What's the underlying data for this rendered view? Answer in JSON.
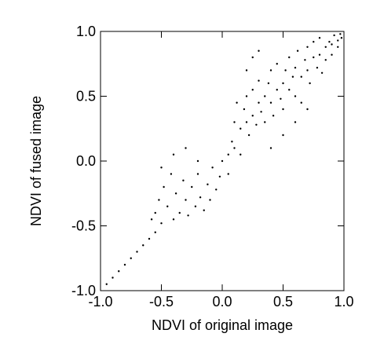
{
  "chart_data": {
    "type": "scatter",
    "xlabel": "NDVI of original image",
    "ylabel": "NDVI of fused image",
    "xlim": [
      -1,
      1
    ],
    "ylim": [
      -1,
      1
    ],
    "xticks": [
      {
        "value": -1,
        "label": "-1.0"
      },
      -0.5,
      {
        "value": 0,
        "label": "0.0"
      },
      0.5,
      {
        "value": 1,
        "label": "1.0"
      }
    ],
    "yticks": [
      {
        "value": -1,
        "label": "-1.0"
      },
      -0.5,
      {
        "value": 0,
        "label": "0.0"
      },
      0.5,
      {
        "value": 1,
        "label": "1.0"
      }
    ],
    "series": [
      {
        "color": "#000000",
        "x": [
          -0.95,
          -0.9,
          -0.85,
          -0.8,
          -0.75,
          -0.7,
          -0.65,
          -0.6,
          -0.55,
          -0.58,
          -0.55,
          -0.52,
          -0.5,
          -0.48,
          -0.45,
          -0.42,
          -0.4,
          -0.38,
          -0.35,
          -0.32,
          -0.3,
          -0.28,
          -0.25,
          -0.22,
          -0.2,
          -0.18,
          -0.15,
          -0.12,
          -0.1,
          -0.08,
          -0.05,
          -0.02,
          -0.5,
          -0.4,
          -0.3,
          -0.2,
          0.0,
          0.05,
          0.05,
          0.08,
          0.1,
          0.1,
          0.12,
          0.15,
          0.15,
          0.18,
          0.2,
          0.2,
          0.22,
          0.25,
          0.25,
          0.28,
          0.3,
          0.3,
          0.32,
          0.35,
          0.35,
          0.38,
          0.4,
          0.4,
          0.42,
          0.45,
          0.45,
          0.48,
          0.5,
          0.5,
          0.52,
          0.55,
          0.55,
          0.58,
          0.6,
          0.6,
          0.62,
          0.65,
          0.65,
          0.68,
          0.7,
          0.7,
          0.72,
          0.75,
          0.75,
          0.78,
          0.8,
          0.8,
          0.82,
          0.85,
          0.85,
          0.88,
          0.9,
          0.9,
          0.92,
          0.95,
          0.95,
          0.97,
          0.98,
          0.3,
          0.2,
          0.6,
          0.7,
          0.5,
          0.4,
          0.25
        ],
        "y": [
          -0.95,
          -0.9,
          -0.85,
          -0.8,
          -0.75,
          -0.7,
          -0.65,
          -0.6,
          -0.55,
          -0.45,
          -0.4,
          -0.3,
          -0.48,
          -0.2,
          -0.35,
          -0.1,
          -0.45,
          -0.25,
          -0.4,
          -0.15,
          -0.3,
          -0.42,
          -0.2,
          -0.35,
          -0.1,
          -0.28,
          -0.38,
          -0.18,
          -0.3,
          -0.05,
          -0.22,
          -0.12,
          -0.05,
          0.05,
          0.1,
          0.0,
          0.0,
          0.05,
          -0.1,
          0.15,
          0.3,
          0.1,
          0.45,
          0.25,
          0.05,
          0.4,
          0.3,
          0.5,
          0.2,
          0.35,
          0.55,
          0.28,
          0.45,
          0.62,
          0.38,
          0.5,
          0.3,
          0.6,
          0.45,
          0.7,
          0.35,
          0.55,
          0.75,
          0.48,
          0.6,
          0.4,
          0.7,
          0.55,
          0.8,
          0.65,
          0.5,
          0.72,
          0.85,
          0.65,
          0.45,
          0.78,
          0.7,
          0.88,
          0.6,
          0.8,
          0.92,
          0.72,
          0.82,
          0.95,
          0.68,
          0.88,
          0.78,
          0.92,
          0.9,
          0.82,
          0.97,
          0.93,
          0.88,
          0.98,
          0.95,
          0.85,
          0.7,
          0.3,
          0.4,
          0.2,
          0.1,
          0.8
        ]
      }
    ]
  }
}
